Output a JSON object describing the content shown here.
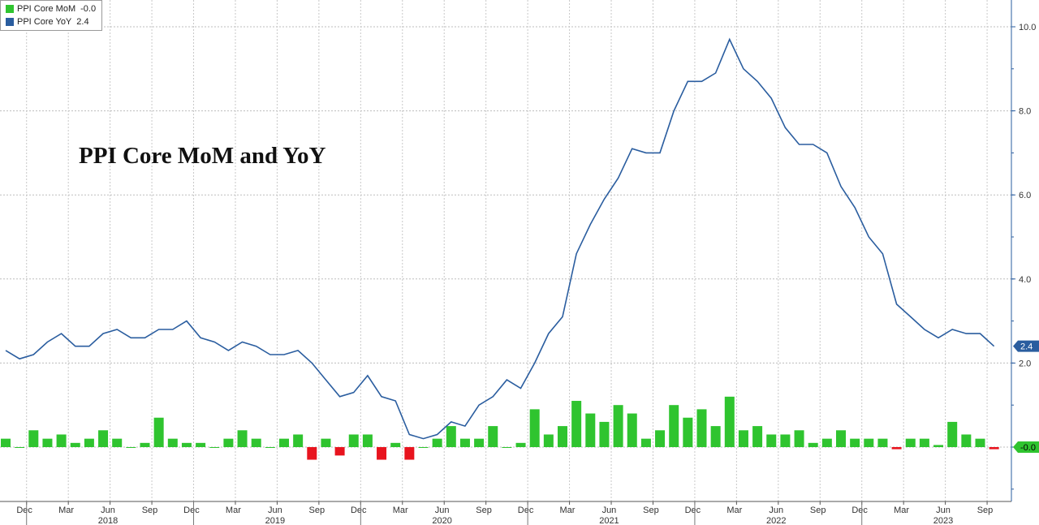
{
  "legend": {
    "items": [
      {
        "name": "PPI Core MoM",
        "value": "-0.0",
        "color": "#2fc42f"
      },
      {
        "name": "PPI Core YoY",
        "value": "2.4",
        "color": "#2a5d9f"
      }
    ]
  },
  "title": "PPI Core MoM and YoY",
  "chart_data": {
    "type": "bar+line",
    "title": "PPI Core MoM and YoY",
    "x_start": "Nov 2017",
    "x": [
      "Nov 2017",
      "Dec 2017",
      "Jan 2018",
      "Feb 2018",
      "Mar 2018",
      "Apr 2018",
      "May 2018",
      "Jun 2018",
      "Jul 2018",
      "Aug 2018",
      "Sep 2018",
      "Oct 2018",
      "Nov 2018",
      "Dec 2018",
      "Jan 2019",
      "Feb 2019",
      "Mar 2019",
      "Apr 2019",
      "May 2019",
      "Jun 2019",
      "Jul 2019",
      "Aug 2019",
      "Sep 2019",
      "Oct 2019",
      "Nov 2019",
      "Dec 2019",
      "Jan 2020",
      "Feb 2020",
      "Mar 2020",
      "Apr 2020",
      "May 2020",
      "Jun 2020",
      "Jul 2020",
      "Aug 2020",
      "Sep 2020",
      "Oct 2020",
      "Nov 2020",
      "Dec 2020",
      "Jan 2021",
      "Feb 2021",
      "Mar 2021",
      "Apr 2021",
      "May 2021",
      "Jun 2021",
      "Jul 2021",
      "Aug 2021",
      "Sep 2021",
      "Oct 2021",
      "Nov 2021",
      "Dec 2021",
      "Jan 2022",
      "Feb 2022",
      "Mar 2022",
      "Apr 2022",
      "May 2022",
      "Jun 2022",
      "Jul 2022",
      "Aug 2022",
      "Sep 2022",
      "Oct 2022",
      "Nov 2022",
      "Dec 2022",
      "Jan 2023",
      "Feb 2023",
      "Mar 2023",
      "Apr 2023",
      "May 2023",
      "Jun 2023",
      "Jul 2023",
      "Aug 2023",
      "Sep 2023",
      "Oct 2023"
    ],
    "series": [
      {
        "name": "PPI Core MoM",
        "kind": "bar",
        "color_pos": "#2fc42f",
        "color_neg": "#e8141e",
        "values": [
          0.2,
          0.0,
          0.4,
          0.2,
          0.3,
          0.1,
          0.2,
          0.4,
          0.2,
          0.0,
          0.1,
          0.7,
          0.2,
          0.1,
          0.1,
          0.0,
          0.2,
          0.4,
          0.2,
          0.0,
          0.2,
          0.3,
          -0.3,
          0.2,
          -0.2,
          0.3,
          0.3,
          -0.3,
          0.1,
          -0.3,
          0.0,
          0.2,
          0.5,
          0.2,
          0.2,
          0.5,
          0.0,
          0.1,
          0.9,
          0.3,
          0.5,
          1.1,
          0.8,
          0.6,
          1.0,
          0.8,
          0.2,
          0.4,
          1.0,
          0.7,
          0.9,
          0.5,
          1.2,
          0.4,
          0.5,
          0.3,
          0.3,
          0.4,
          0.1,
          0.2,
          0.4,
          0.2,
          0.2,
          0.2,
          -0.05,
          0.2,
          0.2,
          0.05,
          0.6,
          0.3,
          0.2,
          -0.05
        ]
      },
      {
        "name": "PPI Core YoY",
        "kind": "line",
        "color": "#2a5d9f",
        "values": [
          2.3,
          2.1,
          2.2,
          2.5,
          2.7,
          2.4,
          2.4,
          2.7,
          2.8,
          2.6,
          2.6,
          2.8,
          2.8,
          3.0,
          2.6,
          2.5,
          2.3,
          2.5,
          2.4,
          2.2,
          2.2,
          2.3,
          2.0,
          1.6,
          1.2,
          1.3,
          1.7,
          1.2,
          1.1,
          0.3,
          0.2,
          0.3,
          0.6,
          0.5,
          1.0,
          1.2,
          1.6,
          1.4,
          2.0,
          2.7,
          3.1,
          4.6,
          5.3,
          5.9,
          6.4,
          7.1,
          7.0,
          7.0,
          8.0,
          8.7,
          8.7,
          8.9,
          9.7,
          9.0,
          8.7,
          8.3,
          7.6,
          7.2,
          7.2,
          7.0,
          6.2,
          5.7,
          5.0,
          4.6,
          3.4,
          3.1,
          2.8,
          2.6,
          2.8,
          2.7,
          2.7,
          2.4
        ]
      }
    ],
    "ylim": [
      -1.1,
      10.3
    ],
    "yticks": [
      -0.0,
      2.0,
      4.0,
      6.0,
      8.0,
      10.0
    ],
    "ytick_labels": [
      "2.0",
      "4.0",
      "6.0",
      "8.0",
      "10.0"
    ],
    "x_tick_labels": [
      {
        "label": "Dec",
        "index": 1
      },
      {
        "label": "Mar",
        "index": 4
      },
      {
        "label": "Jun",
        "index": 7
      },
      {
        "label": "Sep",
        "index": 10
      },
      {
        "label": "Dec",
        "index": 13
      },
      {
        "label": "Mar",
        "index": 16
      },
      {
        "label": "Jun",
        "index": 19
      },
      {
        "label": "Sep",
        "index": 22
      },
      {
        "label": "Dec",
        "index": 25
      },
      {
        "label": "Mar",
        "index": 28
      },
      {
        "label": "Jun",
        "index": 31
      },
      {
        "label": "Sep",
        "index": 34
      },
      {
        "label": "Dec",
        "index": 37
      },
      {
        "label": "Mar",
        "index": 40
      },
      {
        "label": "Jun",
        "index": 43
      },
      {
        "label": "Sep",
        "index": 46
      },
      {
        "label": "Dec",
        "index": 49
      },
      {
        "label": "Mar",
        "index": 52
      },
      {
        "label": "Jun",
        "index": 55
      },
      {
        "label": "Sep",
        "index": 58
      },
      {
        "label": "Dec",
        "index": 61
      },
      {
        "label": "Mar",
        "index": 64
      },
      {
        "label": "Jun",
        "index": 67
      },
      {
        "label": "Sep",
        "index": 70
      }
    ],
    "year_labels": [
      {
        "label": "2018",
        "index": 7
      },
      {
        "label": "2019",
        "index": 19
      },
      {
        "label": "2020",
        "index": 31
      },
      {
        "label": "2021",
        "index": 43
      },
      {
        "label": "2022",
        "index": 55
      },
      {
        "label": "2023",
        "index": 67
      }
    ],
    "badges": [
      {
        "text": "2.4",
        "value": 2.4,
        "bg": "#2a5d9f",
        "fg": "#ffffff"
      },
      {
        "text": "-0.0",
        "value": -0.0,
        "bg": "#2fc42f",
        "fg": "#000000"
      }
    ],
    "grid": true
  }
}
